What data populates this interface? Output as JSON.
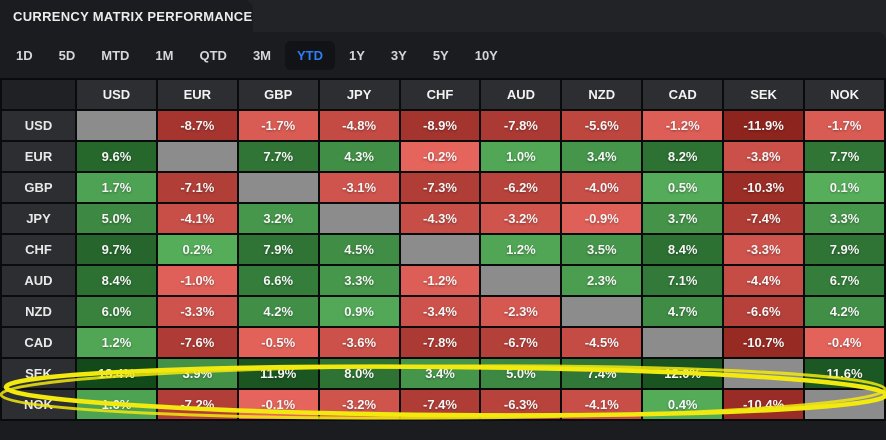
{
  "header": {
    "title": "CURRENCY MATRIX PERFORMANCE"
  },
  "period_tabs": {
    "items": [
      "1D",
      "5D",
      "MTD",
      "1M",
      "QTD",
      "3M",
      "YTD",
      "1Y",
      "3Y",
      "5Y",
      "10Y"
    ],
    "selected": "YTD",
    "selected_color": "#2e7ef7"
  },
  "chart_data": {
    "type": "heatmap",
    "title": "Currency Matrix Performance — YTD",
    "unit": "%",
    "columns": [
      "USD",
      "EUR",
      "GBP",
      "JPY",
      "CHF",
      "AUD",
      "NZD",
      "CAD",
      "SEK",
      "NOK"
    ],
    "rows": [
      "USD",
      "EUR",
      "GBP",
      "JPY",
      "CHF",
      "AUD",
      "NZD",
      "CAD",
      "SEK",
      "NOK"
    ],
    "matrix": [
      [
        null,
        -8.7,
        -1.7,
        -4.8,
        -8.9,
        -7.8,
        -5.6,
        -1.2,
        -11.9,
        -1.7
      ],
      [
        9.6,
        null,
        7.7,
        4.3,
        -0.2,
        1.0,
        3.4,
        8.2,
        -3.8,
        7.7
      ],
      [
        1.7,
        -7.1,
        null,
        -3.1,
        -7.3,
        -6.2,
        -4.0,
        0.5,
        -10.3,
        0.1
      ],
      [
        5.0,
        -4.1,
        3.2,
        null,
        -4.3,
        -3.2,
        -0.9,
        3.7,
        -7.4,
        3.3
      ],
      [
        9.7,
        0.2,
        7.9,
        4.5,
        null,
        1.2,
        3.5,
        8.4,
        -3.3,
        7.9
      ],
      [
        8.4,
        -1.0,
        6.6,
        3.3,
        -1.2,
        null,
        2.3,
        7.1,
        -4.4,
        6.7
      ],
      [
        6.0,
        -3.3,
        4.2,
        0.9,
        -3.4,
        -2.3,
        null,
        4.7,
        -6.6,
        4.2
      ],
      [
        1.2,
        -7.6,
        -0.5,
        -3.6,
        -7.8,
        -6.7,
        -4.5,
        null,
        -10.7,
        -0.4
      ],
      [
        13.4,
        3.9,
        11.9,
        8.0,
        3.4,
        5.0,
        7.4,
        12.0,
        null,
        11.6
      ],
      [
        1.6,
        -7.2,
        -0.1,
        -3.2,
        -7.4,
        -6.3,
        -4.1,
        0.4,
        -10.4,
        null
      ]
    ],
    "color_scale": {
      "positive_min": "#56af5b",
      "positive_max": "#134a1a",
      "negative_min": "#e6655d",
      "negative_max": "#8e241e",
      "neutral": "#8c8c8c",
      "positive_domain": [
        0,
        13.4
      ],
      "negative_domain": [
        0,
        11.9
      ]
    },
    "highlighted_row": "SEK"
  },
  "annotation": {
    "shape": "ellipse",
    "target_row": "SEK",
    "color": "#f2e90e"
  }
}
